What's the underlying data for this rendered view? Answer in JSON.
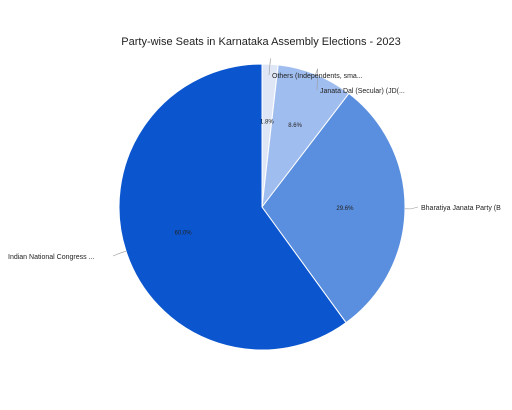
{
  "chart_data": {
    "type": "pie",
    "title": "Party-wise Seats in Karnataka Assembly Elections - 2023",
    "slices": [
      {
        "label": "Others (Independents, sma...",
        "percent_label": "1.8%",
        "value": 1.8,
        "color": "#dfe7f7"
      },
      {
        "label": "Janata Dal (Secular) (JD(...",
        "percent_label": "8.6%",
        "value": 8.6,
        "color": "#a0bdef"
      },
      {
        "label": "Bharatiya Janata Party (B",
        "percent_label": "29.6%",
        "value": 29.6,
        "color": "#5a8ede"
      },
      {
        "label": "Indian National Congress ...",
        "percent_label": "60.0%",
        "value": 60.0,
        "color": "#0b56cf"
      }
    ]
  }
}
